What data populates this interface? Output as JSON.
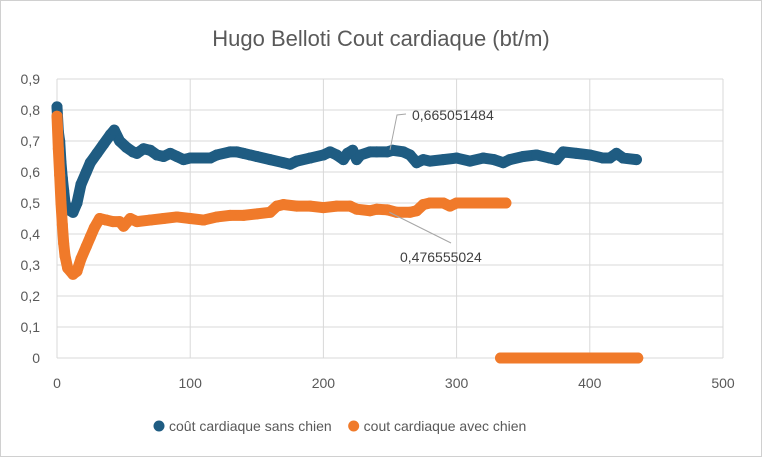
{
  "chart_data": {
    "type": "scatter",
    "title": "Hugo Belloti Cout cardiaque (bt/m)",
    "xlabel": "",
    "ylabel": "",
    "xlim": [
      0,
      500
    ],
    "ylim": [
      0,
      0.9
    ],
    "x_ticks": [
      0,
      100,
      200,
      300,
      400,
      500
    ],
    "y_ticks": [
      0,
      0.1,
      0.2,
      0.3,
      0.4,
      0.5,
      0.6,
      0.7,
      0.8,
      0.9
    ],
    "y_tick_labels": [
      "0",
      "0,1",
      "0,2",
      "0,3",
      "0,4",
      "0,5",
      "0,6",
      "0,7",
      "0,8",
      "0,9"
    ],
    "x_tick_labels": [
      "0",
      "100",
      "200",
      "300",
      "400",
      "500"
    ],
    "grid": true,
    "legend_position": "bottom",
    "series": [
      {
        "name": "coût cardiaque sans chien",
        "color": "#1f5c82",
        "segments": [
          [
            [
              0,
              0.81
            ],
            [
              1,
              0.73
            ],
            [
              2,
              0.7
            ],
            [
              3,
              0.63
            ],
            [
              4,
              0.58
            ],
            [
              5,
              0.54
            ],
            [
              6,
              0.5
            ],
            [
              8,
              0.48
            ],
            [
              12,
              0.47
            ],
            [
              15,
              0.5
            ],
            [
              18,
              0.56
            ],
            [
              22,
              0.6
            ],
            [
              25,
              0.63
            ],
            [
              30,
              0.66
            ],
            [
              35,
              0.69
            ],
            [
              40,
              0.72
            ],
            [
              43,
              0.735
            ],
            [
              47,
              0.7
            ],
            [
              52,
              0.68
            ],
            [
              57,
              0.665
            ],
            [
              60,
              0.66
            ],
            [
              65,
              0.675
            ],
            [
              70,
              0.67
            ],
            [
              75,
              0.655
            ],
            [
              80,
              0.65
            ],
            [
              85,
              0.66
            ],
            [
              90,
              0.65
            ],
            [
              95,
              0.64
            ],
            [
              100,
              0.645
            ],
            [
              110,
              0.645
            ],
            [
              115,
              0.645
            ],
            [
              120,
              0.655
            ],
            [
              130,
              0.665
            ],
            [
              135,
              0.665
            ],
            [
              140,
              0.66
            ],
            [
              145,
              0.655
            ],
            [
              150,
              0.65
            ],
            [
              160,
              0.64
            ],
            [
              170,
              0.63
            ],
            [
              175,
              0.625
            ],
            [
              180,
              0.635
            ],
            [
              190,
              0.645
            ],
            [
              200,
              0.655
            ],
            [
              205,
              0.665
            ],
            [
              210,
              0.655
            ],
            [
              215,
              0.64
            ],
            [
              218,
              0.66
            ],
            [
              222,
              0.67
            ],
            [
              225,
              0.64
            ],
            [
              228,
              0.655
            ],
            [
              235,
              0.665
            ],
            [
              240,
              0.665
            ],
            [
              248,
              0.665
            ],
            [
              252,
              0.67
            ],
            [
              260,
              0.665
            ],
            [
              265,
              0.655
            ],
            [
              270,
              0.63
            ],
            [
              275,
              0.64
            ],
            [
              280,
              0.635
            ],
            [
              290,
              0.64
            ],
            [
              300,
              0.645
            ],
            [
              310,
              0.635
            ],
            [
              320,
              0.645
            ],
            [
              328,
              0.64
            ],
            [
              335,
              0.63
            ],
            [
              340,
              0.64
            ],
            [
              350,
              0.65
            ],
            [
              360,
              0.655
            ],
            [
              370,
              0.645
            ],
            [
              375,
              0.64
            ],
            [
              380,
              0.665
            ],
            [
              390,
              0.66
            ],
            [
              400,
              0.655
            ],
            [
              410,
              0.645
            ],
            [
              415,
              0.645
            ],
            [
              420,
              0.66
            ],
            [
              425,
              0.645
            ],
            [
              435,
              0.64
            ]
          ]
        ]
      },
      {
        "name": "cout cardiaque avec chien",
        "color": "#f07a2a",
        "segments": [
          [
            [
              0,
              0.78
            ],
            [
              1,
              0.675
            ],
            [
              2,
              0.59
            ],
            [
              3,
              0.5
            ],
            [
              4,
              0.43
            ],
            [
              5,
              0.37
            ],
            [
              6,
              0.33
            ],
            [
              8,
              0.29
            ],
            [
              12,
              0.27
            ],
            [
              15,
              0.28
            ],
            [
              18,
              0.32
            ],
            [
              22,
              0.36
            ],
            [
              25,
              0.39
            ],
            [
              28,
              0.42
            ],
            [
              32,
              0.45
            ],
            [
              37,
              0.445
            ],
            [
              42,
              0.44
            ],
            [
              47,
              0.44
            ],
            [
              50,
              0.425
            ],
            [
              55,
              0.45
            ],
            [
              60,
              0.44
            ],
            [
              70,
              0.445
            ],
            [
              80,
              0.45
            ],
            [
              90,
              0.455
            ],
            [
              100,
              0.45
            ],
            [
              110,
              0.445
            ],
            [
              120,
              0.455
            ],
            [
              130,
              0.46
            ],
            [
              140,
              0.46
            ],
            [
              150,
              0.465
            ],
            [
              160,
              0.47
            ],
            [
              165,
              0.49
            ],
            [
              170,
              0.495
            ],
            [
              180,
              0.49
            ],
            [
              190,
              0.49
            ],
            [
              200,
              0.485
            ],
            [
              210,
              0.49
            ],
            [
              220,
              0.49
            ],
            [
              225,
              0.48
            ],
            [
              235,
              0.475
            ],
            [
              240,
              0.48
            ],
            [
              248,
              0.478
            ],
            [
              255,
              0.47
            ],
            [
              265,
              0.47
            ],
            [
              270,
              0.475
            ],
            [
              275,
              0.495
            ],
            [
              280,
              0.5
            ],
            [
              290,
              0.5
            ],
            [
              295,
              0.49
            ],
            [
              300,
              0.5
            ],
            [
              310,
              0.5
            ],
            [
              320,
              0.5
            ],
            [
              330,
              0.5
            ],
            [
              337,
              0.5
            ]
          ],
          [
            [
              333,
              0
            ],
            [
              345,
              0
            ],
            [
              355,
              0
            ],
            [
              365,
              0
            ],
            [
              375,
              0
            ],
            [
              385,
              0
            ],
            [
              395,
              0
            ],
            [
              405,
              0
            ],
            [
              415,
              0
            ],
            [
              425,
              0
            ],
            [
              436,
              0
            ]
          ]
        ]
      }
    ],
    "annotations": [
      {
        "text": "0,665051484",
        "x": 250,
        "y": 0.665,
        "series": 0
      },
      {
        "text": "0,476555024",
        "x": 248,
        "y": 0.4766,
        "series": 1
      }
    ]
  }
}
